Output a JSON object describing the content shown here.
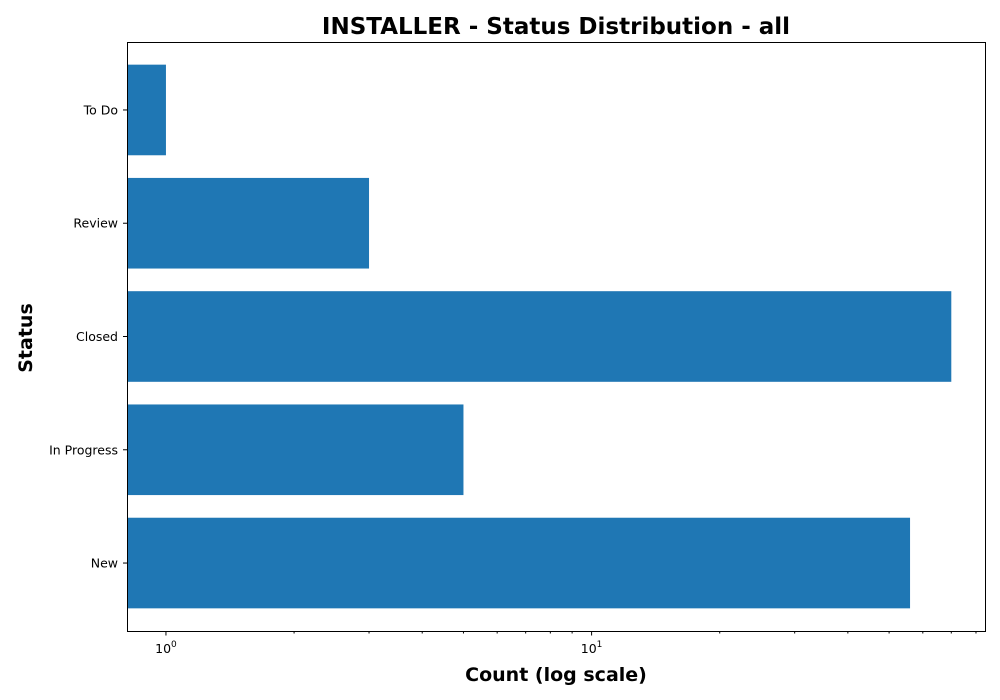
{
  "chart_data": {
    "type": "bar",
    "orientation": "horizontal",
    "title": "INSTALLER - Status Distribution - all",
    "xlabel": "Count (log scale)",
    "ylabel": "Status",
    "x_scale": "log",
    "xlim": [
      0.81,
      84
    ],
    "categories": [
      "New",
      "In Progress",
      "Closed",
      "Review",
      "To Do"
    ],
    "values": [
      56,
      5,
      70,
      3,
      1
    ],
    "x_ticks": [
      {
        "value": 1,
        "base": "10",
        "exp": "0"
      },
      {
        "value": 10,
        "base": "10",
        "exp": "1"
      }
    ],
    "bar_color": "#1f77b4",
    "grid": false,
    "legend": "none"
  }
}
